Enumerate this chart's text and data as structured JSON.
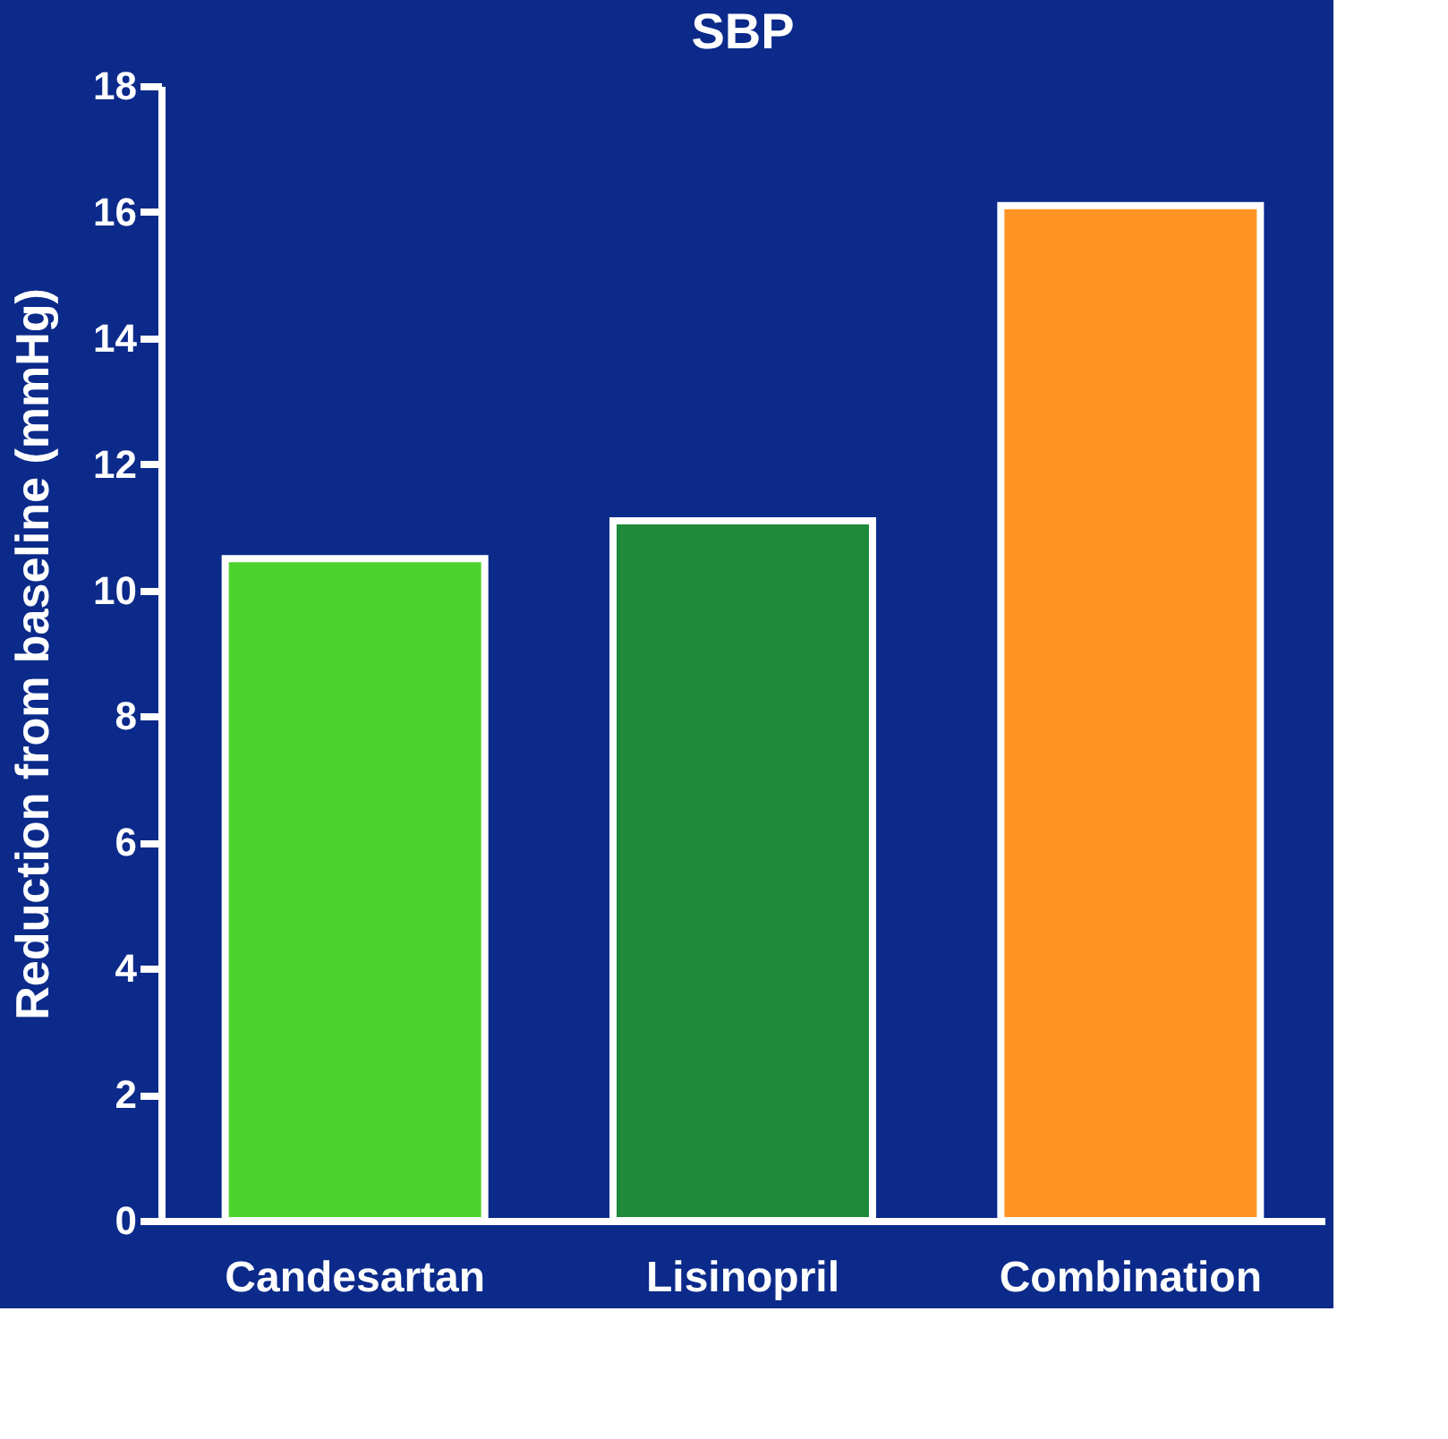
{
  "chart_data": {
    "type": "bar",
    "title": "SBP",
    "ylabel": "Reduction from baseline (mmHg)",
    "categories": [
      "Candesartan",
      "Lisinopril",
      "Combination"
    ],
    "values": [
      10.5,
      11.1,
      16.1
    ],
    "colors": [
      "#4cd22c",
      "#1f8a3a",
      "#ff9422"
    ],
    "ylim": [
      0,
      18
    ],
    "yticks": [
      0,
      2,
      4,
      6,
      8,
      10,
      12,
      14,
      16,
      18
    ],
    "grid": false
  }
}
